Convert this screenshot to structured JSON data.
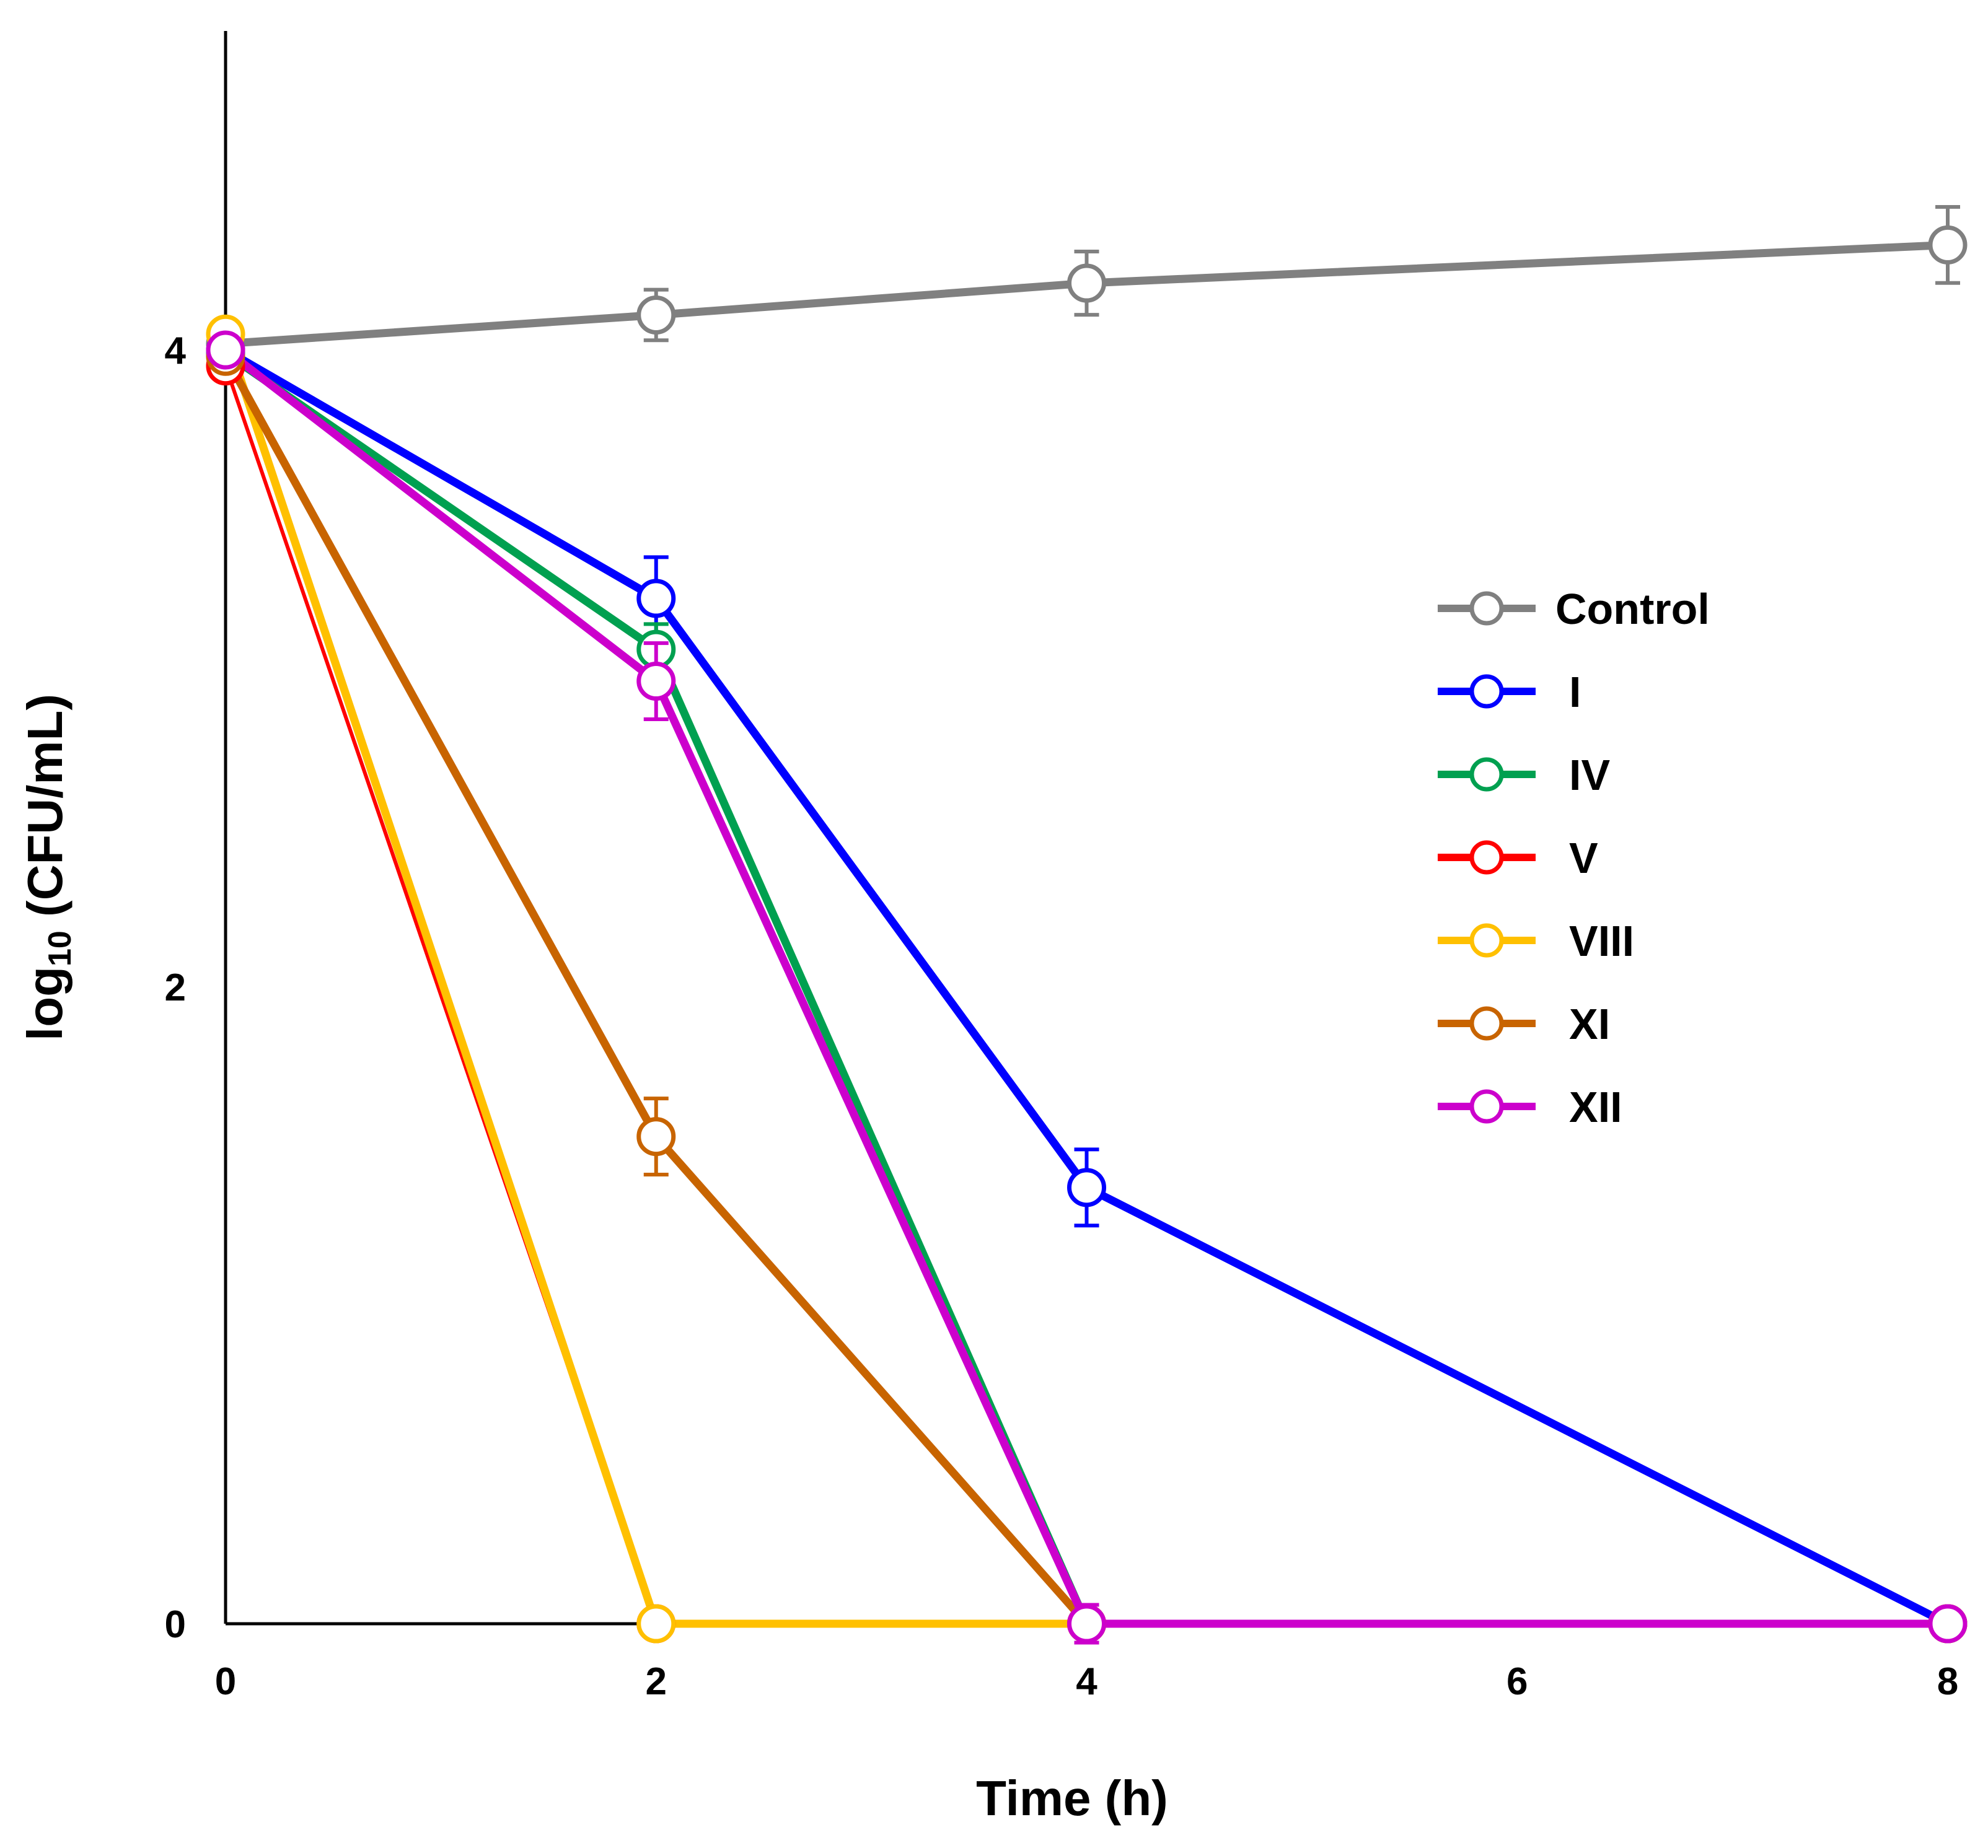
{
  "chart_data": {
    "type": "line",
    "title": "",
    "xlabel": "Time (h)",
    "ylabel_main": "log",
    "ylabel_sub": "10",
    "ylabel_rest": " (CFU/mL)",
    "ylabel": "log10 (CFU/mL)",
    "xlim": [
      0,
      8
    ],
    "ylim": [
      0,
      5
    ],
    "xticks": [
      "0",
      "2",
      "4",
      "6",
      "8"
    ],
    "yticks": [
      "0",
      "2",
      "4"
    ],
    "grid": false,
    "legend_position": "right",
    "series": [
      {
        "name": "Control",
        "color": "#808080",
        "x": [
          0,
          2,
          4,
          8
        ],
        "y": [
          4.02,
          4.11,
          4.21,
          4.33
        ],
        "err": [
          0,
          0.06,
          0.08,
          0.1
        ]
      },
      {
        "name": "I",
        "color": "#0000FF",
        "x": [
          0,
          2,
          4,
          8
        ],
        "y": [
          4.0,
          3.22,
          1.37,
          0
        ],
        "err": [
          0,
          0.11,
          0.1,
          0
        ]
      },
      {
        "name": "IV",
        "color": "#00A050",
        "x": [
          0,
          2,
          4,
          8
        ],
        "y": [
          3.99,
          3.06,
          0,
          0
        ],
        "err": [
          0,
          0.06,
          0,
          0
        ]
      },
      {
        "name": "V",
        "color": "#FF0000",
        "x": [
          0,
          2,
          4,
          8
        ],
        "y": [
          3.95,
          0,
          0,
          0
        ],
        "err": [
          0,
          0,
          0,
          0
        ]
      },
      {
        "name": "VIII",
        "color": "#FFC000",
        "x": [
          0,
          2,
          4,
          8
        ],
        "y": [
          4.05,
          0,
          0,
          0
        ],
        "err": [
          0,
          0,
          0,
          0
        ]
      },
      {
        "name": "XI",
        "color": "#C86400",
        "x": [
          0,
          2,
          4,
          8
        ],
        "y": [
          3.98,
          1.53,
          0,
          0
        ],
        "err": [
          0,
          0.1,
          0,
          0
        ]
      },
      {
        "name": "XII",
        "color": "#CC00CC",
        "x": [
          0,
          2,
          4,
          8
        ],
        "y": [
          4.0,
          2.96,
          0,
          0
        ],
        "err": [
          0,
          0.1,
          0.04,
          0
        ]
      }
    ]
  }
}
